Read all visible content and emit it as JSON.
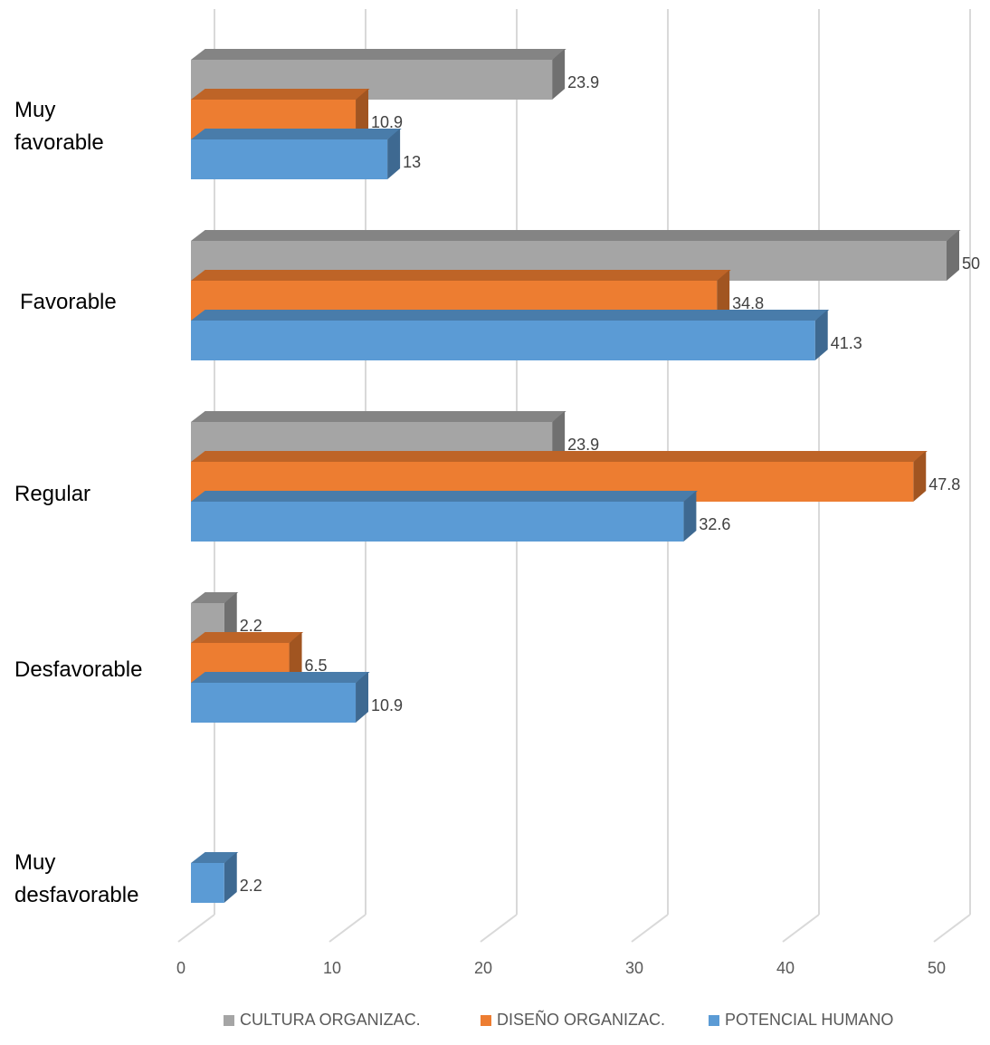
{
  "chart_data": {
    "type": "bar",
    "orientation": "horizontal",
    "style": "3d",
    "categories": [
      "Muy\nfavorable",
      "Favorable",
      "Regular",
      "Desfavorable",
      "Muy\ndesfavorable"
    ],
    "series": [
      {
        "name": "CULTURA ORGANIZAC.",
        "color": "#a5a5a5",
        "values": [
          23.9,
          50,
          23.9,
          2.2,
          null
        ],
        "labels": [
          "23.9",
          "50",
          "23.9",
          "2.2",
          ""
        ]
      },
      {
        "name": "DISEÑO ORGANIZAC.",
        "color": "#ed7d31",
        "values": [
          10.9,
          34.8,
          47.8,
          6.5,
          null
        ],
        "labels": [
          "10.9",
          "34.8",
          "47.8",
          "6.5",
          ""
        ]
      },
      {
        "name": "POTENCIAL HUMANO",
        "color": "#5b9bd5",
        "values": [
          13,
          41.3,
          32.6,
          10.9,
          2.2
        ],
        "labels": [
          "13",
          "41.3",
          "32.6",
          "10.9",
          "2.2"
        ]
      }
    ],
    "xlim": [
      0,
      50
    ],
    "xticks": [
      "0",
      "10",
      "20",
      "30",
      "40",
      "50"
    ],
    "grid": true,
    "legend_position": "bottom"
  }
}
